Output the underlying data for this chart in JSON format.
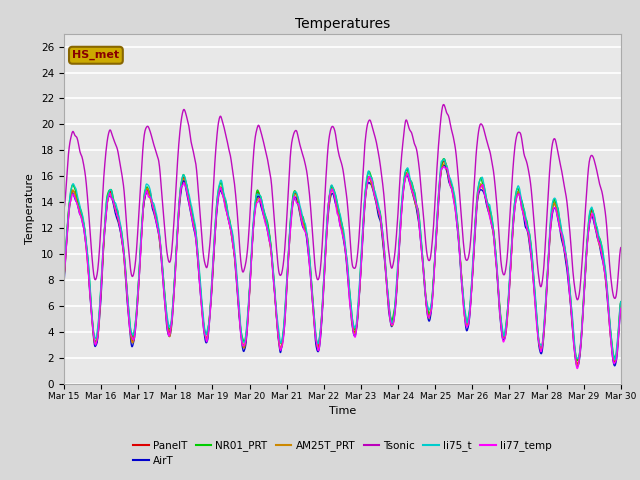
{
  "title": "Temperatures",
  "xlabel": "Time",
  "ylabel": "Temperature",
  "ylim": [
    0,
    27
  ],
  "yticks": [
    0,
    2,
    4,
    6,
    8,
    10,
    12,
    14,
    16,
    18,
    20,
    22,
    24,
    26
  ],
  "bg_color": "#d8d8d8",
  "plot_bg_color": "#e8e8e8",
  "series": [
    {
      "name": "PanelT",
      "color": "#dd0000",
      "lw": 1.0
    },
    {
      "name": "AirT",
      "color": "#0000cc",
      "lw": 1.0
    },
    {
      "name": "NR01_PRT",
      "color": "#00cc00",
      "lw": 1.0
    },
    {
      "name": "AM25T_PRT",
      "color": "#cc8800",
      "lw": 1.0
    },
    {
      "name": "Tsonic",
      "color": "#bb00bb",
      "lw": 1.0
    },
    {
      "name": "li75_t",
      "color": "#00cccc",
      "lw": 1.0
    },
    {
      "name": "li77_temp",
      "color": "#ff00ff",
      "lw": 1.0
    }
  ],
  "hs_met_box_facecolor": "#ccaa00",
  "hs_met_box_edgecolor": "#886600",
  "hs_met_text_color": "#880000",
  "hs_met_label": "HS_met",
  "xtick_labels": [
    "Mar 15",
    "Mar 16",
    "Mar 17",
    "Mar 18",
    "Mar 19",
    "Mar 20",
    "Mar 21",
    "Mar 22",
    "Mar 23",
    "Mar 24",
    "Mar 25",
    "Mar 26",
    "Mar 27",
    "Mar 28",
    "Mar 29",
    "Mar 30"
  ]
}
